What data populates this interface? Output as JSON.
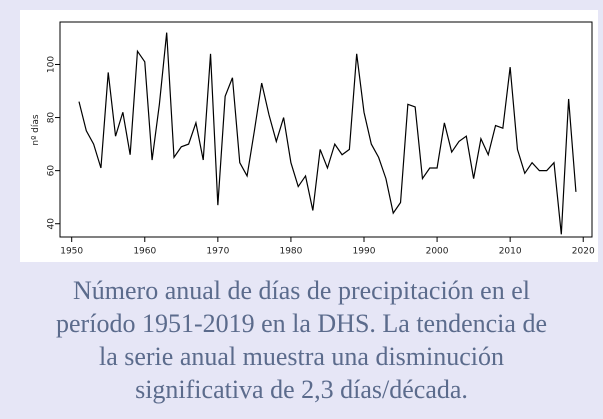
{
  "chart_data": {
    "type": "line",
    "ylabel": "nº días",
    "x": [
      1951,
      1952,
      1953,
      1954,
      1955,
      1956,
      1957,
      1958,
      1959,
      1960,
      1961,
      1962,
      1963,
      1964,
      1965,
      1966,
      1967,
      1968,
      1969,
      1970,
      1971,
      1972,
      1973,
      1974,
      1975,
      1976,
      1977,
      1978,
      1979,
      1980,
      1981,
      1982,
      1983,
      1984,
      1985,
      1986,
      1987,
      1988,
      1989,
      1990,
      1991,
      1992,
      1993,
      1994,
      1995,
      1996,
      1997,
      1998,
      1999,
      2000,
      2001,
      2002,
      2003,
      2004,
      2005,
      2006,
      2007,
      2008,
      2009,
      2010,
      2011,
      2012,
      2013,
      2014,
      2015,
      2016,
      2017,
      2018,
      2019
    ],
    "series": [
      {
        "color": "#000000",
        "values": [
          86,
          75,
          70,
          61,
          97,
          73,
          82,
          66,
          105,
          101,
          64,
          85,
          112,
          65,
          69,
          70,
          78,
          64,
          104,
          47,
          88,
          95,
          63,
          58,
          75,
          93,
          81,
          71,
          80,
          63,
          54,
          58,
          45,
          68,
          61,
          70,
          66,
          68,
          104,
          82,
          70,
          65,
          57,
          44,
          48,
          85,
          84,
          57,
          61,
          61,
          78,
          67,
          71,
          73,
          57,
          72,
          66,
          77,
          76,
          99,
          68,
          59,
          63,
          60,
          60,
          63,
          36,
          87,
          52
        ]
      }
    ],
    "xlim": [
      1948.4,
      2021.2
    ],
    "xticks": [
      1950,
      1960,
      1970,
      1980,
      1990,
      2000,
      2010,
      2020
    ],
    "ylim": [
      35,
      116
    ],
    "yticks": [
      40,
      60,
      80,
      100
    ],
    "caption": [
      "Número anual de días de precipitación en el",
      "período 1951-2019 en la DHS. La tendencia de",
      "la serie anual muestra una disminución",
      "significativa de 2,3 días/década."
    ]
  }
}
